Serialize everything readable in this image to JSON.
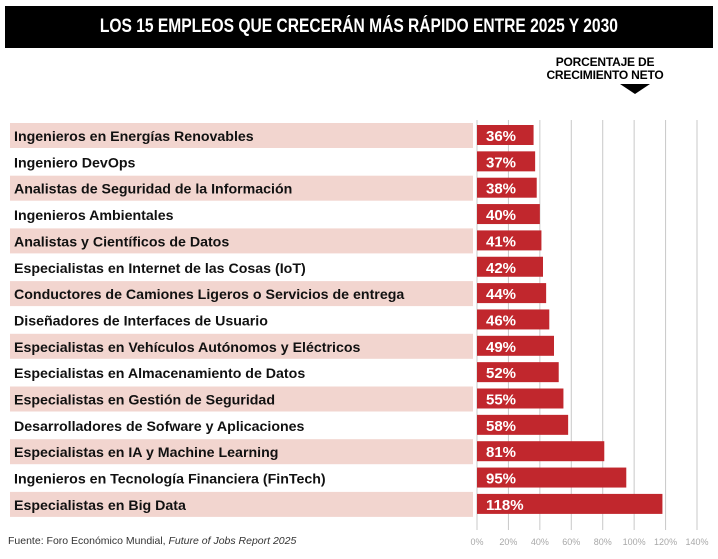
{
  "chart_data": {
    "type": "bar",
    "orientation": "horizontal",
    "title": "LOS 15 EMPLEOS QUE CRECERÁN MÁS RÁPIDO ENTRE 2025 Y 2030",
    "value_axis_title": "PORCENTAJE DE CRECIMIENTO NETO",
    "unit_label_lines": [
      "PORCENTAJE DE",
      "CRECIMIENTO NETO"
    ],
    "categories": [
      "Ingenieros en Energías Renovables",
      "Ingeniero DevOps",
      "Analistas de Seguridad de la Información",
      "Ingenieros Ambientales",
      "Analistas y Científicos de Datos",
      "Especialistas en Internet de las Cosas (IoT)",
      "Conductores de Camiones Ligeros o Servicios de entrega",
      "Diseñadores de Interfaces de Usuario",
      "Especialistas en Vehículos Autónomos y Eléctricos",
      "Especialistas en Almacenamiento de Datos",
      "Especialistas en Gestión de Seguridad",
      "Desarrolladores de Sofware y Aplicaciones",
      "Especialistas en IA y Machine Learning",
      "Ingenieros en Tecnología Financiera (FinTech)",
      "Especialistas en Big Data"
    ],
    "values": [
      36,
      37,
      38,
      40,
      41,
      42,
      44,
      46,
      49,
      52,
      55,
      58,
      81,
      95,
      118
    ],
    "value_labels": [
      "36%",
      "37%",
      "38%",
      "40%",
      "41%",
      "42%",
      "44%",
      "46%",
      "49%",
      "52%",
      "55%",
      "58%",
      "81%",
      "95%",
      "118%"
    ],
    "xlim": [
      0,
      140
    ],
    "xticks": [
      0,
      20,
      40,
      60,
      80,
      100,
      120,
      140
    ],
    "xtick_labels": [
      "0%",
      "20%",
      "40%",
      "60%",
      "80%",
      "100%",
      "120%",
      "140%"
    ],
    "grid": true,
    "colors": {
      "bar": "#c1272d",
      "row_band": "#f2d5cf",
      "grid": "#c8c8c8",
      "title_bg": "#000000"
    }
  },
  "source": {
    "prefix": "Fuente: Foro Económico Mundial, ",
    "italic": "Future of Jobs Report 2025"
  }
}
